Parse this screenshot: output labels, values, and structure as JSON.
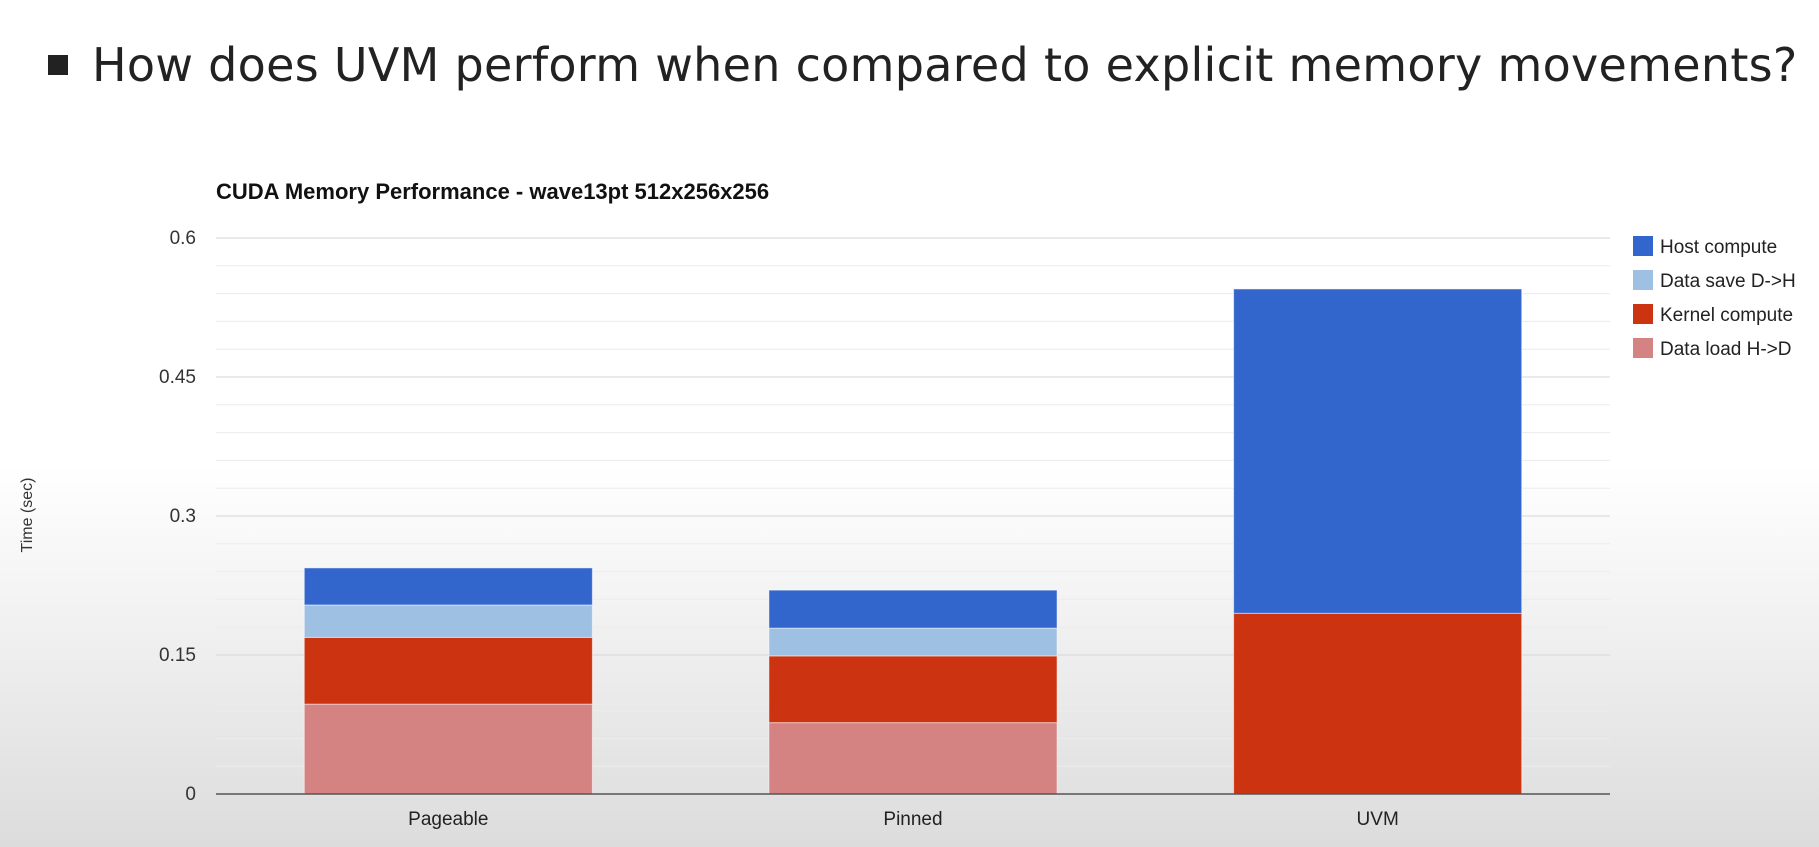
{
  "slide": {
    "heading": "How does UVM perform when compared to explicit memory movements?"
  },
  "chart_data": {
    "type": "bar",
    "stacked": true,
    "title": "CUDA Memory Performance - wave13pt 512x256x256",
    "xlabel": "",
    "ylabel": "Time (sec)",
    "ylim": [
      0,
      0.6
    ],
    "yticks": [
      0,
      0.15,
      0.3,
      0.45,
      0.6
    ],
    "ytick_labels": [
      "0",
      "0.15",
      "0.3",
      "0.45",
      "0.6"
    ],
    "minor_step": 0.03,
    "categories": [
      "Pageable",
      "Pinned",
      "UVM"
    ],
    "legend_position": "right",
    "series": [
      {
        "name": "Data load H->D",
        "color": "#d48282",
        "values": [
          0.097,
          0.077,
          0
        ]
      },
      {
        "name": "Kernel compute",
        "color": "#cc3310",
        "values": [
          0.072,
          0.072,
          0.195
        ]
      },
      {
        "name": "Data save D->H",
        "color": "#9ec0e2",
        "values": [
          0.035,
          0.03,
          0
        ]
      },
      {
        "name": "Host compute",
        "color": "#3366cc",
        "values": [
          0.04,
          0.041,
          0.35
        ]
      }
    ],
    "legend_order": [
      "Host compute",
      "Data save D->H",
      "Kernel compute",
      "Data load H->D"
    ]
  }
}
